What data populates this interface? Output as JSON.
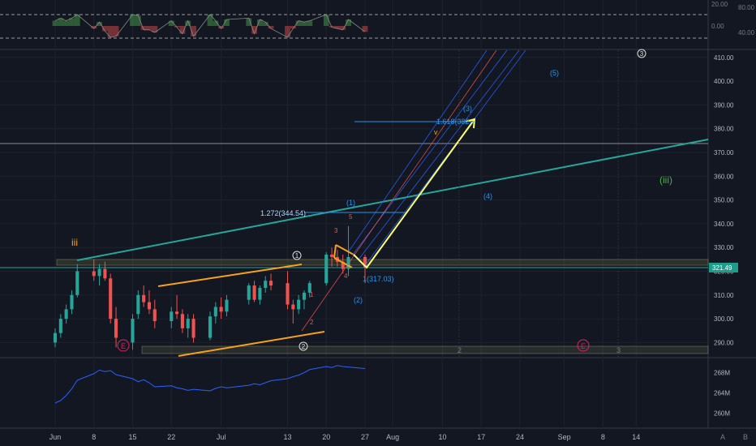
{
  "chart_data": {
    "type": "candlestick",
    "x_ticks": [
      "Jun",
      "8",
      "15",
      "22",
      "Jul",
      "13",
      "20",
      "27",
      "Aug",
      "10",
      "17",
      "24",
      "Sep",
      "8",
      "14"
    ],
    "x_tick_dates": [
      "2020-06-01",
      "2020-06-08",
      "2020-06-15",
      "2020-06-22",
      "2020-07-01",
      "2020-07-13",
      "2020-07-20",
      "2020-07-27",
      "2020-08-01",
      "2020-08-10",
      "2020-08-17",
      "2020-08-24",
      "2020-09-01",
      "2020-09-08",
      "2020-09-14"
    ],
    "price_axis": {
      "ylim": [
        284,
        413
      ],
      "ticks": [
        "410.00",
        "400.00",
        "390.00",
        "380.00",
        "370.00",
        "360.00",
        "350.00",
        "340.00",
        "330.00",
        "320.00",
        "310.00",
        "300.00",
        "290.00"
      ],
      "last_price_label": "321.49"
    },
    "rsi_panel": {
      "ticks_left": [
        "20.00",
        "0.00"
      ],
      "ticks_right": [
        "80.00",
        "40.00"
      ]
    },
    "volume_panel": {
      "ticks": [
        "268M",
        "264M",
        "260M"
      ]
    },
    "price_series": [
      {
        "date": "2020-06-01",
        "open": 290,
        "high": 296,
        "low": 288,
        "close": 294
      },
      {
        "date": "2020-06-02",
        "open": 294,
        "high": 302,
        "low": 292,
        "close": 300
      },
      {
        "date": "2020-06-03",
        "open": 300,
        "high": 306,
        "low": 298,
        "close": 304
      },
      {
        "date": "2020-06-04",
        "open": 304,
        "high": 312,
        "low": 302,
        "close": 310
      },
      {
        "date": "2020-06-05",
        "open": 310,
        "high": 323,
        "low": 309,
        "close": 320
      },
      {
        "date": "2020-06-08",
        "open": 320,
        "high": 325,
        "low": 316,
        "close": 318
      },
      {
        "date": "2020-06-09",
        "open": 318,
        "high": 323,
        "low": 314,
        "close": 321
      },
      {
        "date": "2020-06-10",
        "open": 321,
        "high": 324,
        "low": 316,
        "close": 317
      },
      {
        "date": "2020-06-11",
        "open": 317,
        "high": 319,
        "low": 298,
        "close": 300
      },
      {
        "date": "2020-06-12",
        "open": 300,
        "high": 305,
        "low": 288,
        "close": 292
      },
      {
        "date": "2020-06-15",
        "open": 290,
        "high": 302,
        "low": 287,
        "close": 300
      },
      {
        "date": "2020-06-16",
        "open": 302,
        "high": 312,
        "low": 300,
        "close": 310
      },
      {
        "date": "2020-06-17",
        "open": 310,
        "high": 314,
        "low": 305,
        "close": 307
      },
      {
        "date": "2020-06-18",
        "open": 307,
        "high": 312,
        "low": 302,
        "close": 304
      },
      {
        "date": "2020-06-19",
        "open": 304,
        "high": 308,
        "low": 296,
        "close": 299
      },
      {
        "date": "2020-06-22",
        "open": 299,
        "high": 305,
        "low": 296,
        "close": 303
      },
      {
        "date": "2020-06-23",
        "open": 303,
        "high": 310,
        "low": 300,
        "close": 302
      },
      {
        "date": "2020-06-24",
        "open": 302,
        "high": 304,
        "low": 294,
        "close": 296
      },
      {
        "date": "2020-06-25",
        "open": 296,
        "high": 302,
        "low": 292,
        "close": 300
      },
      {
        "date": "2020-06-26",
        "open": 300,
        "high": 302,
        "low": 290,
        "close": 292
      },
      {
        "date": "2020-06-29",
        "open": 292,
        "high": 303,
        "low": 291,
        "close": 301
      },
      {
        "date": "2020-06-30",
        "open": 301,
        "high": 307,
        "low": 298,
        "close": 305
      },
      {
        "date": "2020-07-01",
        "open": 305,
        "high": 309,
        "low": 300,
        "close": 303
      },
      {
        "date": "2020-07-02",
        "open": 303,
        "high": 310,
        "low": 301,
        "close": 308
      },
      {
        "date": "2020-07-06",
        "open": 308,
        "high": 315,
        "low": 306,
        "close": 314
      },
      {
        "date": "2020-07-07",
        "open": 314,
        "high": 316,
        "low": 307,
        "close": 308
      },
      {
        "date": "2020-07-08",
        "open": 308,
        "high": 314,
        "low": 306,
        "close": 313
      },
      {
        "date": "2020-07-09",
        "open": 313,
        "high": 318,
        "low": 311,
        "close": 316
      },
      {
        "date": "2020-07-10",
        "open": 316,
        "high": 319,
        "low": 312,
        "close": 314
      },
      {
        "date": "2020-07-13",
        "open": 315,
        "high": 320,
        "low": 304,
        "close": 306
      },
      {
        "date": "2020-07-14",
        "open": 306,
        "high": 308,
        "low": 298,
        "close": 304
      },
      {
        "date": "2020-07-15",
        "open": 304,
        "high": 310,
        "low": 302,
        "close": 308
      },
      {
        "date": "2020-07-16",
        "open": 308,
        "high": 312,
        "low": 304,
        "close": 311
      },
      {
        "date": "2020-07-17",
        "open": 311,
        "high": 316,
        "low": 309,
        "close": 315
      },
      {
        "date": "2020-07-20",
        "open": 315,
        "high": 328,
        "low": 314,
        "close": 327
      },
      {
        "date": "2020-07-21",
        "open": 327,
        "high": 330,
        "low": 322,
        "close": 326
      },
      {
        "date": "2020-07-22",
        "open": 326,
        "high": 329,
        "low": 322,
        "close": 324
      },
      {
        "date": "2020-07-23",
        "open": 324,
        "high": 327,
        "low": 319,
        "close": 321
      },
      {
        "date": "2020-07-24",
        "open": 321,
        "high": 339,
        "low": 318,
        "close": 326
      },
      {
        "date": "2020-07-27",
        "open": 326,
        "high": 327,
        "low": 315,
        "close": 321.49
      }
    ],
    "volume_series": [
      262,
      262.5,
      263.5,
      264.8,
      266.5,
      267.8,
      268.5,
      268.2,
      268.4,
      267.6,
      266.8,
      266.2,
      266.6,
      266,
      265.2,
      265.4,
      265,
      264.8,
      264.5,
      264.7,
      264.4,
      264.9,
      265.2,
      265,
      265.5,
      265.8,
      265.6,
      266,
      266.4,
      266.8,
      267.2,
      267.5,
      268,
      268.6,
      269.2,
      269,
      269.4,
      269.2,
      269.1,
      268.8
    ]
  },
  "annotations": {
    "wave_iii_orange": "iii",
    "wave_iii_green": "(iii)",
    "wave_1_circled": "1",
    "wave_2_circled": "2",
    "wave_3_circled": "3",
    "wave_E_left": "E",
    "wave_E_right": "E",
    "sub_1": "1",
    "sub_2": "2",
    "sub_3": "3",
    "sub_4": "4",
    "sub_5": "5",
    "paren_1": "(1)",
    "paren_2": "(2)",
    "paren_3": "(3)",
    "paren_4": "(4)",
    "paren_5": "(5)",
    "sub_v": "v",
    "fib_1272": "1.272(344.54)",
    "fib_1618": "1.618(382.",
    "fib_1": "1(317.03)",
    "grid_2": "2",
    "grid_3": "3"
  },
  "colors": {
    "background": "#131722",
    "up": "#26a69a",
    "down": "#ef5350",
    "teal_line": "#26a69a",
    "orange": "#f7a21b",
    "yellow": "#ffff66",
    "blue_label": "#2196f3",
    "volume_line": "#2962ff",
    "price_badge": "#1e9b8a"
  },
  "footer": {
    "auto_label": "A",
    "log_label": "B"
  }
}
